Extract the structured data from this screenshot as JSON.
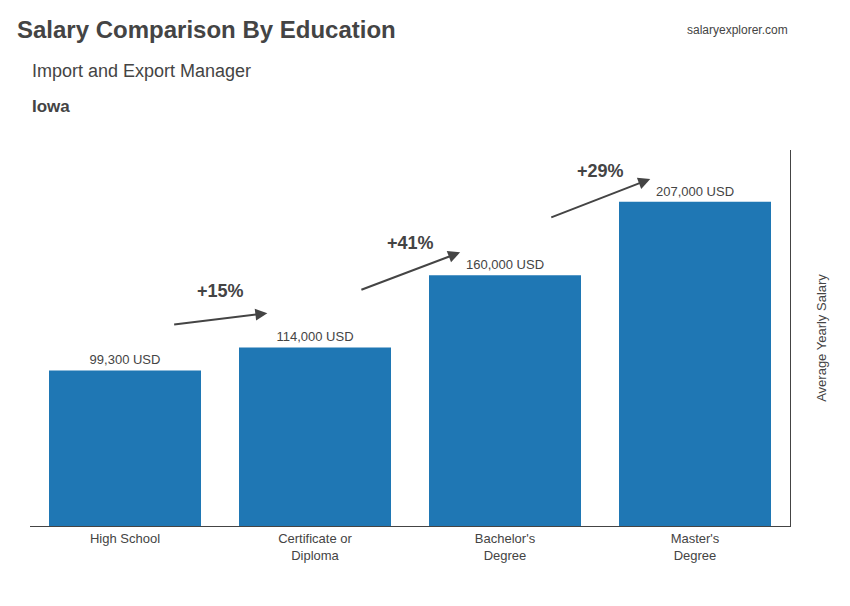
{
  "chart_data": {
    "type": "bar",
    "title": "Salary Comparison By Education",
    "subtitle": "Import and Export Manager",
    "annotations": [
      "Iowa",
      "salaryexplorer.com"
    ],
    "ylabel": "Average Yearly Salary",
    "categories": [
      "High School",
      "Certificate or\nDiploma",
      "Bachelor's\nDegree",
      "Master's\nDegree"
    ],
    "values": [
      99300,
      114000,
      160000,
      207000
    ],
    "value_labels": [
      "99,300 USD",
      "114,000 USD",
      "160,000 USD",
      "207,000 USD"
    ],
    "data_labels": true,
    "change_labels": [
      "+15%",
      "+41%",
      "+29%"
    ],
    "ylim": [
      0,
      240000
    ],
    "tick_labels": "x",
    "grid": false
  }
}
